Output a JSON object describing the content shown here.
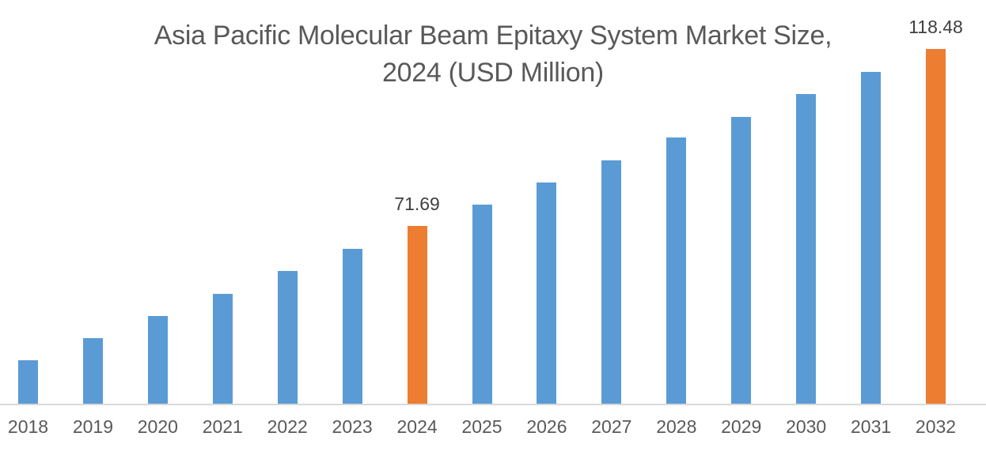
{
  "chart_data": {
    "type": "bar",
    "title": "Asia Pacific Molecular Beam Epitaxy System Market Size, 2024 (USD Million)",
    "title_line1": "Asia Pacific Molecular Beam Epitaxy System Market Size,",
    "title_line2": "2024 (USD Million)",
    "xlabel": "",
    "ylabel": "",
    "categories": [
      "2018",
      "2019",
      "2020",
      "2021",
      "2022",
      "2023",
      "2024",
      "2025",
      "2026",
      "2027",
      "2028",
      "2029",
      "2030",
      "2031",
      "2032"
    ],
    "values": [
      36.2,
      42.0,
      47.9,
      53.8,
      59.8,
      65.7,
      71.69,
      77.4,
      83.2,
      89.1,
      95.1,
      100.6,
      106.6,
      112.5,
      118.48
    ],
    "data_labels": {
      "2024": "71.69",
      "2032": "118.48"
    },
    "highlighted_categories": [
      "2024",
      "2032"
    ],
    "colors": {
      "bar_default": "#5b9bd5",
      "bar_highlight": "#ed7d31",
      "title_text": "#595959",
      "axis_text": "#595959",
      "data_label_text": "#404040",
      "axis_line": "#d9d9d9",
      "background": "#ffffff"
    },
    "legend": "none",
    "gridlines": false,
    "y_axis_visible": false,
    "ylim_estimate": [
      24.7,
      122
    ]
  }
}
